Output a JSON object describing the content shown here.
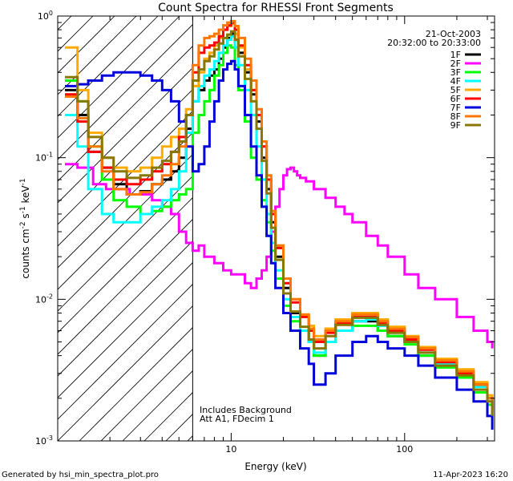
{
  "chart_data": {
    "type": "line",
    "title": "Count Spectra for RHESSI Front Segments",
    "xlabel": "Energy (keV)",
    "ylabel": "counts cm^-2 s^-1 keV^-1",
    "ylabel_parts": {
      "base": "counts cm",
      "exp1": "-2",
      "mid": " s",
      "exp2": "-1",
      "mid2": " keV",
      "exp3": "-1"
    },
    "x_scale": "log",
    "y_scale": "log",
    "xlim": [
      1.0,
      330
    ],
    "ylim": [
      0.001,
      1.0
    ],
    "x_ticks": [
      {
        "value": 10,
        "label": "10"
      },
      {
        "value": 100,
        "label": "100"
      }
    ],
    "y_ticks": [
      {
        "value": 1,
        "base": "10",
        "exp": "0"
      },
      {
        "value": 0.1,
        "base": "10",
        "exp": "-1"
      },
      {
        "value": 0.01,
        "base": "10",
        "exp": "-2"
      },
      {
        "value": 0.001,
        "base": "10",
        "exp": "-3"
      }
    ],
    "date": "21-Oct-2003",
    "time_range": "20:32:00 to 20:33:00",
    "annotations": [
      "Includes Background",
      "Att A1, FDecim 1"
    ],
    "threshold_energy": 6.0,
    "footer_left": "Generated by hsi_min_spectra_plot.pro",
    "footer_right": "11-Apr-2023 16:20",
    "series": [
      {
        "name": "1F",
        "color": "#000000",
        "x": [
          1.1,
          1.3,
          1.5,
          1.8,
          2.1,
          2.5,
          3,
          3.5,
          4,
          4.5,
          5,
          5.5,
          6,
          6.5,
          7,
          7.5,
          8,
          8.5,
          9,
          9.5,
          10,
          10.5,
          11,
          12,
          13,
          14,
          15,
          16,
          17,
          18,
          20,
          22,
          25,
          28,
          30,
          35,
          40,
          50,
          60,
          70,
          80,
          100,
          120,
          150,
          200,
          250,
          300,
          320
        ],
        "y": [
          0.3,
          0.2,
          0.11,
          0.085,
          0.065,
          0.055,
          0.058,
          0.065,
          0.07,
          0.08,
          0.1,
          0.16,
          0.25,
          0.3,
          0.35,
          0.38,
          0.42,
          0.5,
          0.6,
          0.7,
          0.75,
          0.68,
          0.55,
          0.4,
          0.28,
          0.18,
          0.1,
          0.06,
          0.035,
          0.02,
          0.012,
          0.008,
          0.006,
          0.005,
          0.004,
          0.005,
          0.006,
          0.007,
          0.007,
          0.006,
          0.0055,
          0.005,
          0.004,
          0.0035,
          0.003,
          0.0025,
          0.002,
          0.0015
        ]
      },
      {
        "name": "2F",
        "color": "#ff00ff",
        "x": [
          1.1,
          1.3,
          1.6,
          1.9,
          2.2,
          2.6,
          3,
          3.5,
          4,
          4.5,
          5,
          5.5,
          6,
          6.5,
          7,
          8,
          9,
          10,
          11,
          12,
          13,
          14,
          15,
          16,
          17,
          18,
          19,
          20,
          21,
          22,
          23,
          24,
          25,
          27,
          30,
          35,
          40,
          45,
          50,
          60,
          70,
          80,
          100,
          120,
          150,
          200,
          250,
          300,
          320
        ],
        "y": [
          0.09,
          0.085,
          0.065,
          0.06,
          0.06,
          0.055,
          0.055,
          0.05,
          0.045,
          0.04,
          0.03,
          0.025,
          0.022,
          0.024,
          0.02,
          0.018,
          0.016,
          0.015,
          0.015,
          0.013,
          0.012,
          0.014,
          0.016,
          0.02,
          0.03,
          0.045,
          0.06,
          0.075,
          0.083,
          0.085,
          0.08,
          0.075,
          0.072,
          0.068,
          0.06,
          0.052,
          0.045,
          0.04,
          0.035,
          0.028,
          0.024,
          0.02,
          0.015,
          0.012,
          0.01,
          0.0075,
          0.006,
          0.005,
          0.0045
        ]
      },
      {
        "name": "3F",
        "color": "#00ff00",
        "x": [
          1.1,
          1.3,
          1.5,
          1.8,
          2.1,
          2.5,
          3,
          3.5,
          4,
          4.5,
          5,
          5.5,
          6,
          6.5,
          7,
          7.5,
          8,
          8.5,
          9,
          9.5,
          10,
          10.5,
          11,
          12,
          13,
          14,
          15,
          16,
          17,
          18,
          20,
          22,
          25,
          28,
          30,
          35,
          40,
          50,
          60,
          70,
          80,
          100,
          120,
          150,
          200,
          250,
          300,
          320
        ],
        "y": [
          0.35,
          0.25,
          0.12,
          0.07,
          0.05,
          0.045,
          0.04,
          0.042,
          0.045,
          0.05,
          0.055,
          0.06,
          0.15,
          0.2,
          0.25,
          0.3,
          0.38,
          0.45,
          0.55,
          0.62,
          0.6,
          0.45,
          0.3,
          0.18,
          0.1,
          0.07,
          0.05,
          0.035,
          0.022,
          0.014,
          0.009,
          0.007,
          0.006,
          0.005,
          0.004,
          0.005,
          0.006,
          0.0065,
          0.0065,
          0.006,
          0.0055,
          0.0048,
          0.004,
          0.0033,
          0.0028,
          0.0022,
          0.0018,
          0.0015
        ]
      },
      {
        "name": "4F",
        "color": "#00ffff",
        "x": [
          1.1,
          1.3,
          1.5,
          1.8,
          2.1,
          2.5,
          3,
          3.5,
          4,
          4.5,
          5,
          5.5,
          6,
          6.5,
          7,
          7.5,
          8,
          8.5,
          9,
          9.5,
          10,
          10.5,
          11,
          12,
          13,
          14,
          15,
          16,
          17,
          18,
          20,
          22,
          25,
          28,
          30,
          35,
          40,
          50,
          60,
          70,
          80,
          100,
          120,
          150,
          200,
          250,
          300,
          320
        ],
        "y": [
          0.2,
          0.12,
          0.06,
          0.04,
          0.035,
          0.035,
          0.04,
          0.045,
          0.05,
          0.06,
          0.08,
          0.15,
          0.25,
          0.32,
          0.38,
          0.42,
          0.48,
          0.55,
          0.62,
          0.68,
          0.72,
          0.6,
          0.45,
          0.3,
          0.2,
          0.12,
          0.07,
          0.04,
          0.025,
          0.016,
          0.01,
          0.0075,
          0.006,
          0.005,
          0.0042,
          0.005,
          0.006,
          0.007,
          0.0072,
          0.0065,
          0.0058,
          0.005,
          0.0042,
          0.0035,
          0.003,
          0.0024,
          0.002,
          0.0016
        ]
      },
      {
        "name": "5F",
        "color": "#ffaa00",
        "x": [
          1.1,
          1.3,
          1.5,
          1.8,
          2.1,
          2.5,
          3,
          3.5,
          4,
          4.5,
          5,
          5.5,
          6,
          6.5,
          7,
          7.5,
          8,
          8.5,
          9,
          9.5,
          10,
          10.5,
          11,
          12,
          13,
          14,
          15,
          16,
          17,
          18,
          20,
          22,
          25,
          28,
          30,
          35,
          40,
          50,
          60,
          70,
          80,
          100,
          120,
          150,
          200,
          250,
          300,
          320
        ],
        "y": [
          0.6,
          0.3,
          0.15,
          0.1,
          0.085,
          0.08,
          0.085,
          0.1,
          0.12,
          0.14,
          0.16,
          0.22,
          0.32,
          0.4,
          0.5,
          0.55,
          0.62,
          0.7,
          0.8,
          0.85,
          0.88,
          0.75,
          0.6,
          0.42,
          0.3,
          0.2,
          0.12,
          0.07,
          0.04,
          0.024,
          0.014,
          0.01,
          0.0078,
          0.0065,
          0.0055,
          0.0062,
          0.0072,
          0.008,
          0.008,
          0.0072,
          0.0064,
          0.0055,
          0.0046,
          0.0038,
          0.0032,
          0.0026,
          0.0021,
          0.0017
        ]
      },
      {
        "name": "6F",
        "color": "#ff0000",
        "x": [
          1.1,
          1.3,
          1.5,
          1.8,
          2.1,
          2.5,
          3,
          3.5,
          4,
          4.5,
          5,
          5.5,
          6,
          6.5,
          7,
          7.5,
          8,
          8.5,
          9,
          9.5,
          10,
          10.5,
          11,
          12,
          13,
          14,
          15,
          16,
          17,
          18,
          20,
          22,
          25,
          28,
          30,
          35,
          40,
          50,
          60,
          70,
          80,
          100,
          120,
          150,
          200,
          250,
          300,
          320
        ],
        "y": [
          0.28,
          0.18,
          0.11,
          0.085,
          0.07,
          0.065,
          0.07,
          0.08,
          0.09,
          0.11,
          0.14,
          0.2,
          0.4,
          0.55,
          0.6,
          0.62,
          0.65,
          0.72,
          0.8,
          0.86,
          0.9,
          0.8,
          0.62,
          0.45,
          0.3,
          0.2,
          0.12,
          0.07,
          0.04,
          0.023,
          0.013,
          0.0095,
          0.0075,
          0.006,
          0.005,
          0.0058,
          0.0068,
          0.0075,
          0.0075,
          0.0068,
          0.006,
          0.0052,
          0.0044,
          0.0036,
          0.003,
          0.0025,
          0.002,
          0.0016
        ]
      },
      {
        "name": "7F",
        "color": "#0000dd",
        "x": [
          1.1,
          1.3,
          1.5,
          1.8,
          2.1,
          2.5,
          3,
          3.5,
          4,
          4.5,
          5,
          5.5,
          6,
          6.5,
          7,
          7.5,
          8,
          8.5,
          9,
          9.5,
          10,
          10.5,
          11,
          12,
          13,
          14,
          15,
          16,
          17,
          18,
          20,
          22,
          25,
          28,
          30,
          35,
          40,
          50,
          60,
          70,
          80,
          100,
          120,
          150,
          200,
          250,
          300,
          320
        ],
        "y": [
          0.32,
          0.33,
          0.35,
          0.38,
          0.4,
          0.4,
          0.38,
          0.35,
          0.3,
          0.25,
          0.18,
          0.12,
          0.08,
          0.09,
          0.12,
          0.18,
          0.25,
          0.35,
          0.42,
          0.46,
          0.48,
          0.42,
          0.32,
          0.2,
          0.12,
          0.075,
          0.045,
          0.028,
          0.018,
          0.012,
          0.008,
          0.006,
          0.0045,
          0.0035,
          0.0025,
          0.003,
          0.004,
          0.005,
          0.0055,
          0.005,
          0.0045,
          0.004,
          0.0034,
          0.0028,
          0.0023,
          0.0019,
          0.0015,
          0.0012
        ]
      },
      {
        "name": "8F",
        "color": "#ff7700",
        "x": [
          1.1,
          1.3,
          1.5,
          1.8,
          2.1,
          2.5,
          3,
          3.5,
          4,
          4.5,
          5,
          5.5,
          6,
          6.5,
          7,
          7.5,
          8,
          8.5,
          9,
          9.5,
          10,
          10.5,
          11,
          12,
          13,
          14,
          15,
          16,
          17,
          18,
          20,
          22,
          25,
          28,
          30,
          35,
          40,
          50,
          60,
          70,
          80,
          100,
          120,
          150,
          200,
          250,
          300,
          320
        ],
        "y": [
          0.27,
          0.19,
          0.12,
          0.08,
          0.06,
          0.055,
          0.057,
          0.065,
          0.075,
          0.09,
          0.12,
          0.2,
          0.45,
          0.62,
          0.7,
          0.72,
          0.75,
          0.8,
          0.86,
          0.9,
          0.92,
          0.85,
          0.7,
          0.5,
          0.35,
          0.22,
          0.13,
          0.075,
          0.042,
          0.024,
          0.014,
          0.01,
          0.0078,
          0.0062,
          0.0052,
          0.006,
          0.007,
          0.0078,
          0.0078,
          0.007,
          0.0062,
          0.0054,
          0.0045,
          0.0037,
          0.0031,
          0.0025,
          0.002,
          0.0016
        ]
      },
      {
        "name": "9F",
        "color": "#887700",
        "x": [
          1.1,
          1.3,
          1.5,
          1.8,
          2.1,
          2.5,
          3,
          3.5,
          4,
          4.5,
          5,
          5.5,
          6,
          6.5,
          7,
          7.5,
          8,
          8.5,
          9,
          9.5,
          10,
          10.5,
          11,
          12,
          13,
          14,
          15,
          16,
          17,
          18,
          20,
          22,
          25,
          28,
          30,
          35,
          40,
          50,
          60,
          70,
          80,
          100,
          120,
          150,
          200,
          250,
          300,
          320
        ],
        "y": [
          0.37,
          0.25,
          0.14,
          0.1,
          0.08,
          0.072,
          0.075,
          0.085,
          0.095,
          0.11,
          0.13,
          0.2,
          0.35,
          0.42,
          0.48,
          0.52,
          0.58,
          0.64,
          0.7,
          0.74,
          0.78,
          0.68,
          0.52,
          0.36,
          0.25,
          0.16,
          0.095,
          0.056,
          0.032,
          0.019,
          0.011,
          0.0082,
          0.0064,
          0.0052,
          0.0045,
          0.0055,
          0.0066,
          0.0074,
          0.0074,
          0.0066,
          0.0058,
          0.005,
          0.0042,
          0.0034,
          0.0029,
          0.0023,
          0.0019,
          0.0015
        ]
      }
    ]
  }
}
